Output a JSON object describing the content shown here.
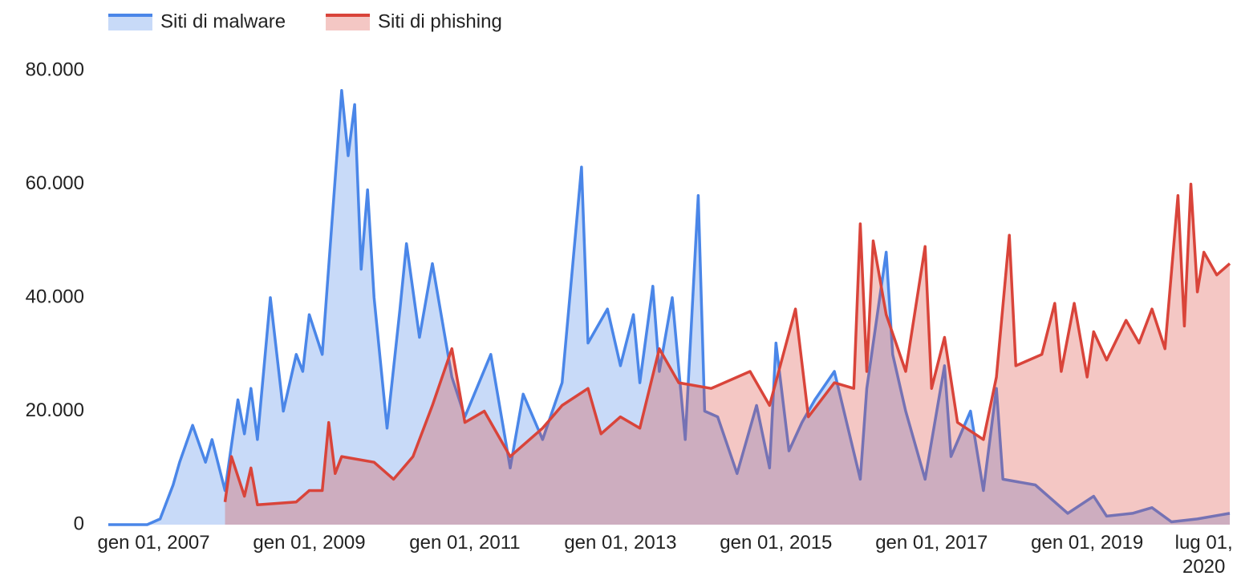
{
  "chart_data": {
    "type": "area",
    "xlim": [
      "2006-06-01",
      "2020-11-01"
    ],
    "xticks": [
      {
        "value": "2007-01-01",
        "label": "gen 01, 2007"
      },
      {
        "value": "2009-01-01",
        "label": "gen 01, 2009"
      },
      {
        "value": "2011-01-01",
        "label": "gen 01, 2011"
      },
      {
        "value": "2013-01-01",
        "label": "gen 01, 2013"
      },
      {
        "value": "2015-01-01",
        "label": "gen 01, 2015"
      },
      {
        "value": "2017-01-01",
        "label": "gen 01, 2017"
      },
      {
        "value": "2019-01-01",
        "label": "gen 01, 2019"
      },
      {
        "value": "2020-07-01",
        "label": "lug 01, 2020"
      }
    ],
    "ylim": [
      0,
      80000
    ],
    "yticks": [
      0,
      {
        "value": 20000,
        "label": "20.000"
      },
      {
        "value": 40000,
        "label": "40.000"
      },
      {
        "value": 60000,
        "label": "60.000"
      },
      {
        "value": 80000,
        "label": "80.000"
      }
    ],
    "grid": false,
    "legend": "top-left",
    "series": [
      {
        "name": "Siti di malware",
        "color": "#4a86e8",
        "x": [
          "2006-06-01",
          "2006-12-01",
          "2007-02-01",
          "2007-04-01",
          "2007-05-01",
          "2007-07-01",
          "2007-09-01",
          "2007-10-01",
          "2007-12-01",
          "2008-02-01",
          "2008-03-01",
          "2008-04-01",
          "2008-05-01",
          "2008-07-01",
          "2008-09-01",
          "2008-11-01",
          "2008-12-01",
          "2009-01-01",
          "2009-03-01",
          "2009-06-01",
          "2009-07-01",
          "2009-08-01",
          "2009-09-01",
          "2009-10-01",
          "2009-11-01",
          "2010-01-01",
          "2010-03-01",
          "2010-04-01",
          "2010-06-01",
          "2010-08-01",
          "2010-11-01",
          "2011-01-01",
          "2011-05-01",
          "2011-08-01",
          "2011-10-01",
          "2012-01-01",
          "2012-04-01",
          "2012-07-01",
          "2012-08-01",
          "2012-11-01",
          "2013-01-01",
          "2013-03-01",
          "2013-04-01",
          "2013-06-01",
          "2013-07-01",
          "2013-09-01",
          "2013-11-01",
          "2014-01-01",
          "2014-02-01",
          "2014-04-01",
          "2014-07-01",
          "2014-10-01",
          "2014-12-01",
          "2015-01-01",
          "2015-03-01",
          "2015-05-01",
          "2015-07-01",
          "2015-10-01",
          "2016-02-01",
          "2016-03-01",
          "2016-06-01",
          "2016-07-01",
          "2016-09-01",
          "2016-12-01",
          "2017-03-01",
          "2017-04-01",
          "2017-07-01",
          "2017-09-01",
          "2017-11-01",
          "2017-12-01",
          "2018-05-01",
          "2018-10-01",
          "2019-02-01",
          "2019-04-01",
          "2019-08-01",
          "2019-11-01",
          "2020-02-01",
          "2020-06-01",
          "2020-11-01"
        ],
        "values": [
          0,
          0,
          1000,
          7000,
          11000,
          17500,
          11000,
          15000,
          6000,
          22000,
          16000,
          24000,
          15000,
          40000,
          20000,
          30000,
          27000,
          37000,
          30000,
          76500,
          65000,
          74000,
          45000,
          59000,
          40000,
          17000,
          38000,
          49500,
          33000,
          46000,
          26000,
          19000,
          30000,
          10000,
          23000,
          15000,
          25000,
          63000,
          32000,
          38000,
          28000,
          37000,
          25000,
          42000,
          27000,
          40000,
          15000,
          58000,
          20000,
          19000,
          9000,
          21000,
          10000,
          32000,
          13000,
          18000,
          22000,
          27000,
          8000,
          24000,
          48000,
          30000,
          20000,
          8000,
          28000,
          12000,
          20000,
          6000,
          24000,
          8000,
          7000,
          2000,
          5000,
          1500,
          2000,
          3000,
          500,
          1000,
          2000
        ]
      },
      {
        "name": "Siti di phishing",
        "color": "#d9443a",
        "x": [
          "2007-12-01",
          "2008-01-01",
          "2008-03-01",
          "2008-04-01",
          "2008-05-01",
          "2008-11-01",
          "2009-01-01",
          "2009-03-01",
          "2009-04-01",
          "2009-05-01",
          "2009-06-01",
          "2009-11-01",
          "2010-02-01",
          "2010-05-01",
          "2010-08-01",
          "2010-11-01",
          "2011-01-01",
          "2011-04-01",
          "2011-08-01",
          "2012-01-01",
          "2012-04-01",
          "2012-08-01",
          "2012-10-01",
          "2013-01-01",
          "2013-04-01",
          "2013-07-01",
          "2013-10-01",
          "2014-03-01",
          "2014-09-01",
          "2014-12-01",
          "2015-04-01",
          "2015-06-01",
          "2015-10-01",
          "2016-01-01",
          "2016-02-01",
          "2016-03-01",
          "2016-04-01",
          "2016-06-01",
          "2016-09-01",
          "2016-12-01",
          "2017-01-01",
          "2017-03-01",
          "2017-05-01",
          "2017-09-01",
          "2017-11-01",
          "2018-01-01",
          "2018-02-01",
          "2018-06-01",
          "2018-08-01",
          "2018-09-01",
          "2018-11-01",
          "2019-01-01",
          "2019-02-01",
          "2019-04-01",
          "2019-07-01",
          "2019-09-01",
          "2019-11-01",
          "2020-01-01",
          "2020-03-01",
          "2020-04-01",
          "2020-05-01",
          "2020-06-01",
          "2020-07-01",
          "2020-09-01",
          "2020-11-01"
        ],
        "values": [
          4000,
          12000,
          5000,
          10000,
          3500,
          4000,
          6000,
          6000,
          18000,
          9000,
          12000,
          11000,
          8000,
          12000,
          21000,
          31000,
          18000,
          20000,
          12000,
          17000,
          21000,
          24000,
          16000,
          19000,
          17000,
          31000,
          25000,
          24000,
          27000,
          21000,
          38000,
          19000,
          25000,
          24000,
          53000,
          27000,
          50000,
          37000,
          27000,
          49000,
          24000,
          33000,
          18000,
          15000,
          26000,
          51000,
          28000,
          30000,
          39000,
          27000,
          39000,
          26000,
          34000,
          29000,
          36000,
          32000,
          38000,
          31000,
          58000,
          35000,
          60000,
          41000,
          48000,
          44000,
          46000
        ]
      }
    ]
  }
}
